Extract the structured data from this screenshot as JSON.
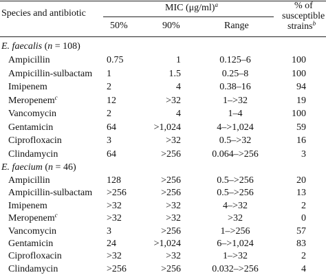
{
  "table": {
    "header": {
      "species": "Species and antibiotic",
      "mic": "MIC (μg/ml)",
      "mic_note": "a",
      "sub": [
        "50%",
        "90%",
        "Range"
      ],
      "susceptible": [
        "% of",
        "susceptible",
        "strains"
      ],
      "susceptible_note": "b"
    },
    "groups": [
      {
        "label": [
          {
            "text": "E. faecalis",
            "italic": true
          },
          {
            "text": " (",
            "italic": false
          },
          {
            "text": "n",
            "italic": true
          },
          {
            "text": " = 108)",
            "italic": false
          }
        ],
        "rows": [
          {
            "name": "Ampicillin",
            "mic50": "0.75",
            "mic90": "1",
            "range": "0.125–6",
            "pct": "100"
          },
          {
            "name": "Ampicillin-sulbactam",
            "mic50": "1",
            "mic90": "1.5",
            "range": "0.25–8",
            "pct": "100"
          },
          {
            "name": "Imipenem",
            "mic50": "2",
            "mic90": "4",
            "range": "0.38–16",
            "pct": "94"
          },
          {
            "name": "Meropenem",
            "note": "c",
            "mic50": "12",
            "mic90": ">32",
            "range": "1–>32",
            "pct": "19"
          },
          {
            "name": "Vancomycin",
            "mic50": "2",
            "mic90": "4",
            "range": "1–4",
            "pct": "100"
          },
          {
            "name": "Gentamicin",
            "mic50": "64",
            "mic90": ">1,024",
            "range": "4–>1,024",
            "pct": "59"
          },
          {
            "name": "Ciprofloxacin",
            "mic50": "3",
            "mic90": ">32",
            "range": "0.5–>32",
            "pct": "16"
          },
          {
            "name": "Clindamycin",
            "mic50": "64",
            "mic90": ">256",
            "range": "0.064–>256",
            "pct": "3"
          }
        ]
      },
      {
        "label": [
          {
            "text": "E. faecium",
            "italic": true
          },
          {
            "text": " (",
            "italic": false
          },
          {
            "text": "n",
            "italic": true
          },
          {
            "text": " = 46)",
            "italic": false
          }
        ],
        "rows": [
          {
            "name": "Ampicillin",
            "mic50": "128",
            "mic90": ">256",
            "range": "0.5–>256",
            "pct": "20"
          },
          {
            "name": "Ampicillin-sulbactam",
            "mic50": ">256",
            "mic90": ">256",
            "range": "0.5–>256",
            "pct": "13"
          },
          {
            "name": "Imipenem",
            "mic50": ">32",
            "mic90": ">32",
            "range": "4–>32",
            "pct": "2"
          },
          {
            "name": "Meropenem",
            "note": "c",
            "mic50": ">32",
            "mic90": ">32",
            "range": ">32",
            "pct": "0"
          },
          {
            "name": "Vancomycin",
            "mic50": "3",
            "mic90": ">256",
            "range": "1–>256",
            "pct": "57"
          },
          {
            "name": "Gentamicin",
            "mic50": "24",
            "mic90": ">1,024",
            "range": "6–>1,024",
            "pct": "83"
          },
          {
            "name": "Ciprofloxacin",
            "mic50": ">32",
            "mic90": ">32",
            "range": "1–>32",
            "pct": "2"
          },
          {
            "name": "Clindamycin",
            "mic50": ">256",
            "mic90": ">256",
            "range": "0.032–>256",
            "pct": "4"
          }
        ]
      }
    ]
  }
}
